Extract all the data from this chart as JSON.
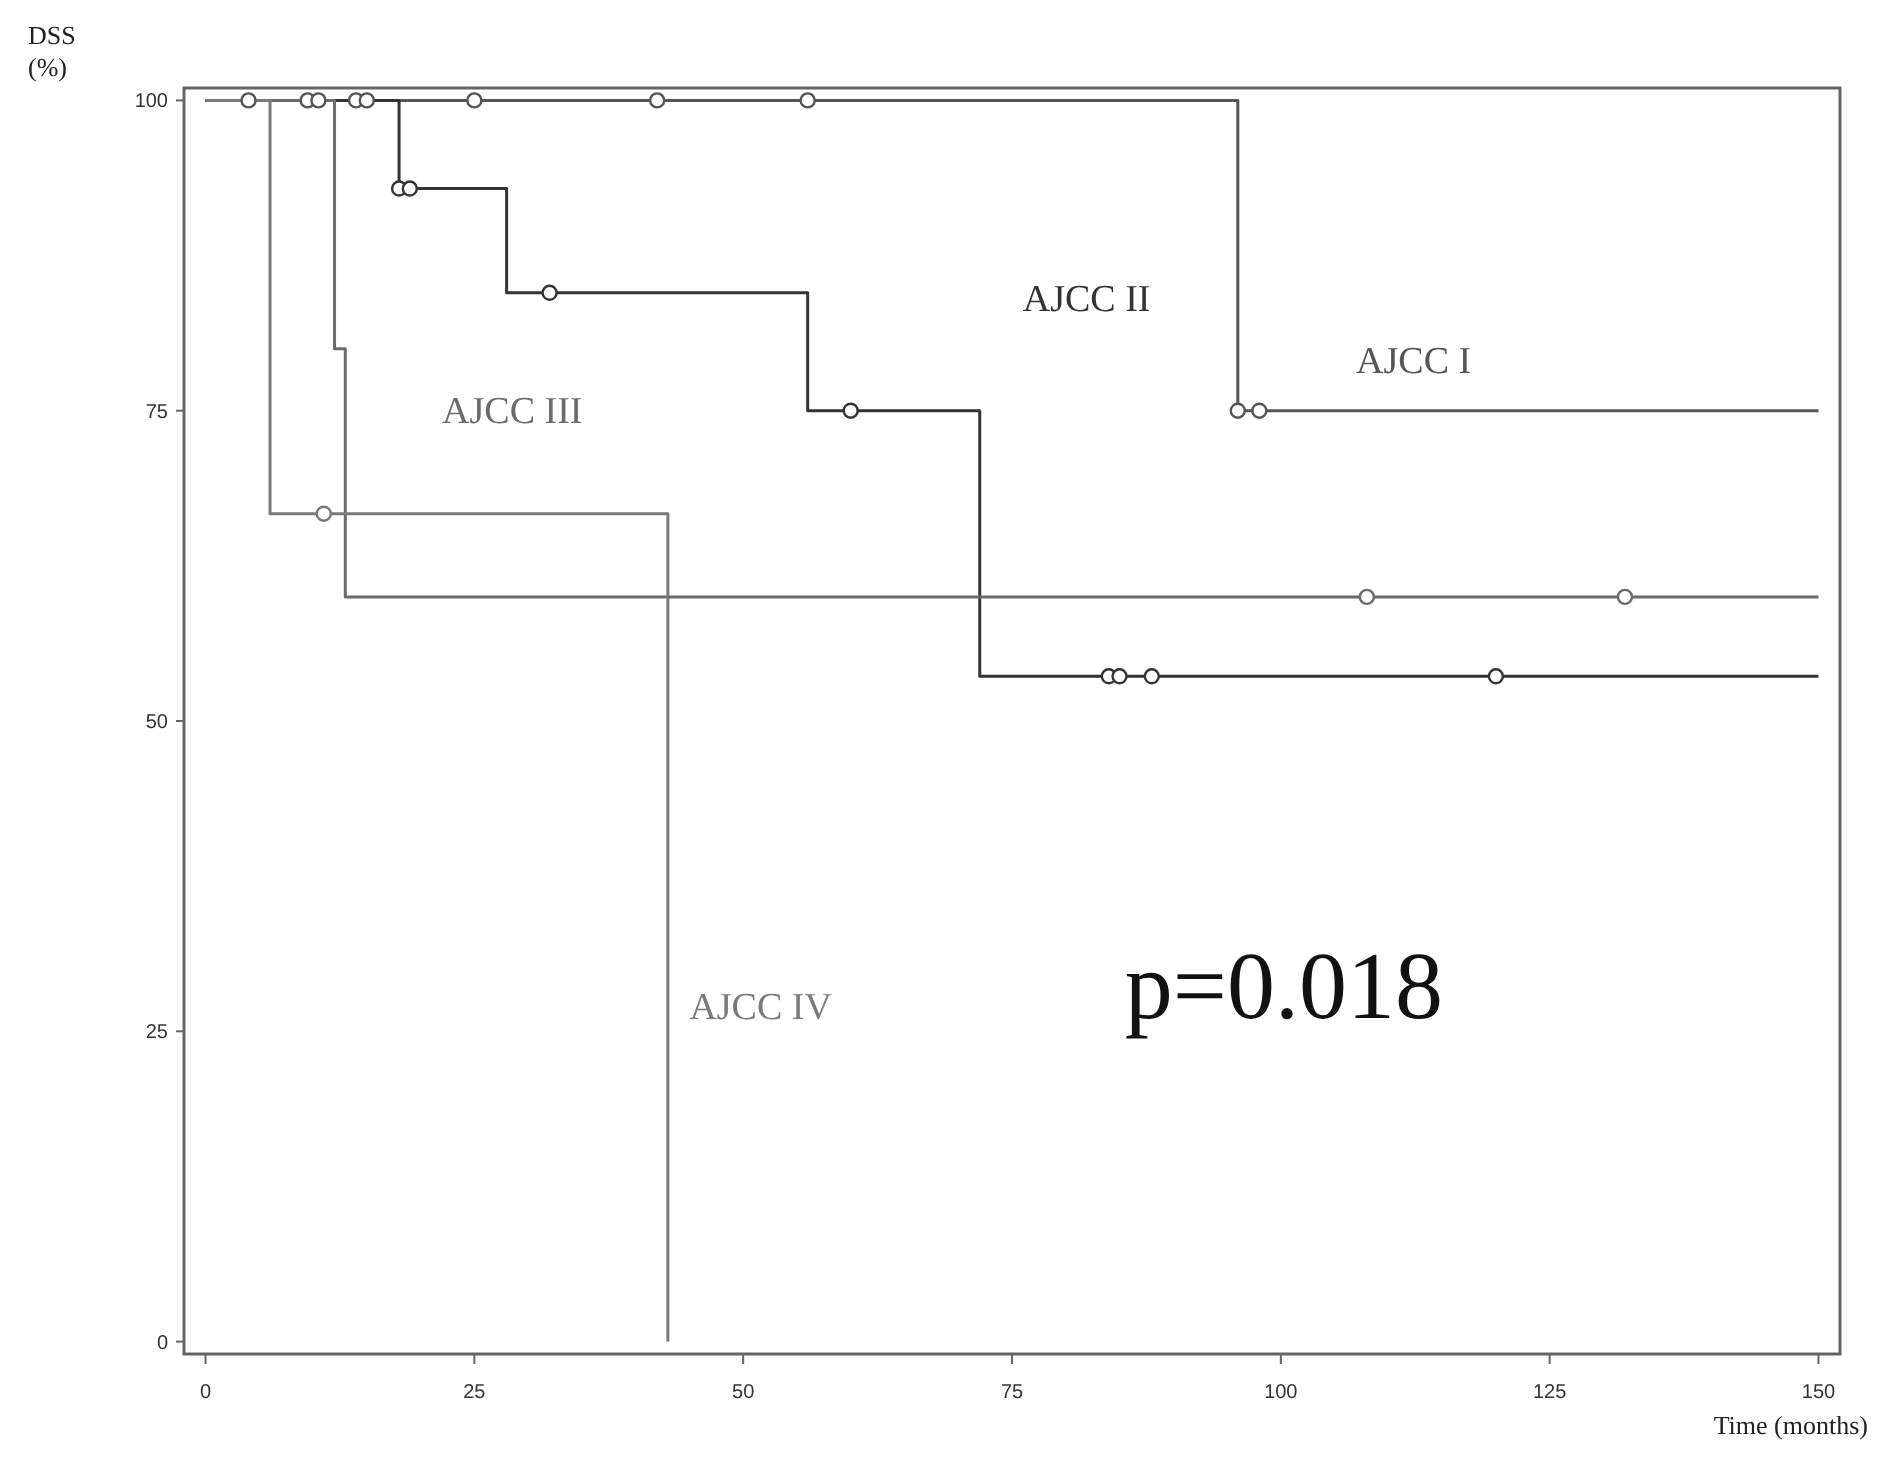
{
  "chart_data": {
    "type": "step",
    "xlabel": "Time (months)",
    "ylabel": "DSS (%)",
    "xlim": [
      -2,
      152
    ],
    "ylim": [
      -1,
      101
    ],
    "xticks": [
      0,
      25,
      50,
      75,
      100,
      125,
      150
    ],
    "yticks": [
      0,
      25,
      50,
      75,
      100
    ],
    "grid": false,
    "line_style": "solid",
    "annotations": [
      "p=0.018"
    ],
    "series": [
      {
        "name": "AJCC I",
        "color": "#555555",
        "marker": "none",
        "x": [
          0,
          96,
          96,
          150
        ],
        "values": [
          100,
          100,
          75,
          75
        ]
      },
      {
        "name": "AJCC II",
        "color": "#333333",
        "marker": "none",
        "x": [
          0,
          18,
          18,
          28,
          28,
          56,
          56,
          72,
          72,
          150
        ],
        "values": [
          100,
          100,
          92.9,
          92.9,
          84.5,
          84.5,
          75,
          75,
          53.6,
          53.6
        ]
      },
      {
        "name": "AJCC III",
        "color": "#6b6b6b",
        "marker": "none",
        "x": [
          0,
          12,
          12,
          13,
          13,
          150
        ],
        "values": [
          100,
          100,
          80,
          80,
          60,
          60
        ]
      },
      {
        "name": "AJCC IV",
        "color": "#7a7a7a",
        "marker": "none",
        "x": [
          0,
          6,
          6,
          43,
          43
        ],
        "values": [
          100,
          100,
          66.7,
          66.7,
          0
        ]
      },
      {
        "type": "scatter",
        "color": "#555555",
        "marker": "circle",
        "x": [
          4,
          9.5,
          10.5,
          14,
          15,
          25,
          42,
          56,
          96,
          98
        ],
        "values": [
          100,
          100,
          100,
          100,
          100,
          100,
          100,
          100,
          75,
          75
        ]
      },
      {
        "type": "scatter",
        "color": "#333333",
        "marker": "circle",
        "x": [
          18,
          19,
          32,
          60,
          84,
          85,
          88,
          120
        ],
        "values": [
          92.9,
          92.9,
          84.5,
          75,
          53.6,
          53.6,
          53.6,
          53.6
        ]
      },
      {
        "type": "scatter",
        "color": "#6b6b6b",
        "marker": "circle",
        "x": [
          108,
          132
        ],
        "values": [
          60,
          60
        ]
      },
      {
        "type": "scatter",
        "color": "#7a7a7a",
        "marker": "circle",
        "x": [
          11
        ],
        "values": [
          66.7
        ]
      }
    ]
  }
}
